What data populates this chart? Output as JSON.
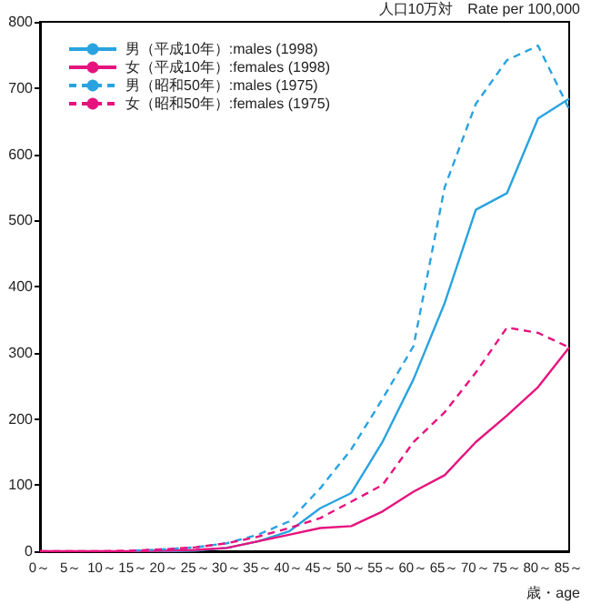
{
  "chart_data": {
    "type": "line",
    "ylabel": "人口10万対　Rate per 100,000",
    "xlabel": "歳・age",
    "categories": [
      "0～",
      "5～",
      "10～",
      "15～",
      "20～",
      "25～",
      "30～",
      "35～",
      "40～",
      "45～",
      "50～",
      "55～",
      "60～",
      "65～",
      "70～",
      "75～",
      "80～",
      "85～"
    ],
    "series": [
      {
        "name": "男（平成10年）:males (1998)",
        "color": "#29a3e0",
        "line_style": "solid",
        "values": [
          null,
          null,
          null,
          0,
          0,
          1,
          5,
          15,
          30,
          65,
          88,
          165,
          260,
          375,
          516,
          541,
          654,
          684
        ]
      },
      {
        "name": "女（平成10年）:females (1998)",
        "color": "#e6137e",
        "line_style": "solid",
        "values": [
          0,
          0,
          0,
          0,
          1,
          2,
          5,
          15,
          25,
          35,
          38,
          60,
          90,
          115,
          165,
          205,
          248,
          308
        ]
      },
      {
        "name": "男（昭和50年）:males (1975)",
        "color": "#29a3e0",
        "line_style": "dashed",
        "values": [
          null,
          null,
          null,
          1,
          3,
          6,
          12,
          25,
          45,
          95,
          154,
          230,
          310,
          550,
          676,
          742,
          764,
          668
        ]
      },
      {
        "name": "女（昭和50年）:females (1975)",
        "color": "#e6137e",
        "line_style": "dashed",
        "values": [
          0,
          0,
          0,
          1,
          3,
          6,
          12,
          22,
          35,
          50,
          75,
          100,
          165,
          210,
          270,
          338,
          330,
          308
        ]
      }
    ],
    "ylim": [
      0,
      800
    ],
    "yticks": [
      0,
      100,
      200,
      300,
      400,
      500,
      600,
      700,
      800
    ],
    "grid": false,
    "legend": "top left",
    "marker": "none"
  }
}
